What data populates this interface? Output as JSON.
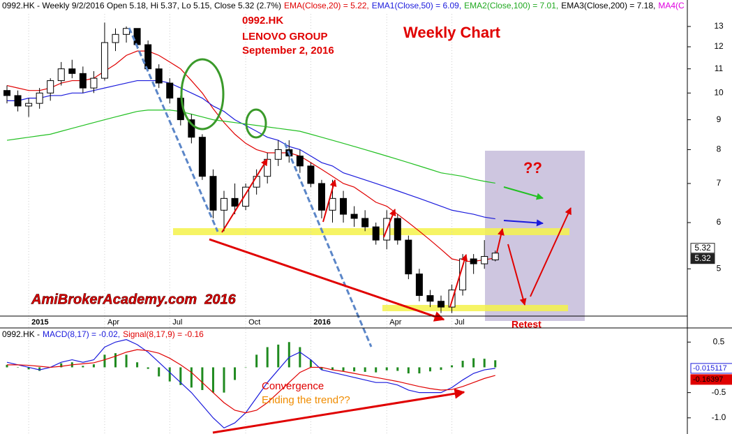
{
  "chart_data": [
    {
      "type": "candlestick",
      "header": [
        {
          "text": "0992.HK - Weekly 9/2/2016 Open 5.18, Hi 5.37, Lo 5.15, Close 5.32 (2.7%)",
          "color": "#000000"
        },
        {
          "text": "EMA(Close,20) = 5.22,",
          "color": "#e00000"
        },
        {
          "text": "EMA1(Close,50) = 6.09,",
          "color": "#1a1adc"
        },
        {
          "text": "EMA2(Close,100) = 7.01,",
          "color": "#1fa81f"
        },
        {
          "text": "EMA3(Close,200) = 7.18,",
          "color": "#000000"
        },
        {
          "text": "MA4(C",
          "color": "#e000e0"
        }
      ],
      "annotations": [
        "0992.HK",
        "LENOVO GROUP",
        "September 2, 2016",
        "Weekly Chart",
        "??",
        "AmiBrokerAcademy.com  2016",
        "Retest"
      ],
      "last_labels": [
        "5.32",
        "5.32"
      ],
      "categories": [
        null,
        null,
        "2015",
        null,
        null,
        null,
        null,
        null,
        null,
        "Apr",
        null,
        null,
        null,
        null,
        null,
        "Jul",
        null,
        null,
        null,
        null,
        null,
        null,
        "Oct",
        null,
        null,
        null,
        null,
        null,
        "2016",
        null,
        null,
        null,
        null,
        null,
        null,
        "Apr",
        null,
        null,
        null,
        null,
        null,
        "Jul",
        null,
        null,
        null,
        null
      ],
      "open": [
        10.1,
        9.9,
        9.5,
        9.6,
        10.0,
        10.5,
        11.0,
        10.8,
        10.2,
        10.6,
        12.2,
        12.6,
        12.9,
        12.1,
        11.0,
        10.4,
        9.8,
        9.0,
        8.4,
        7.2,
        6.3,
        6.6,
        6.4,
        6.9,
        7.2,
        7.7,
        8.0,
        7.8,
        7.5,
        7.0,
        6.3,
        6.6,
        6.2,
        6.1,
        5.9,
        5.6,
        6.1,
        5.6,
        4.9,
        4.5,
        4.4,
        4.3,
        4.6,
        5.2,
        5.1,
        5.18
      ],
      "high": [
        10.3,
        10.1,
        9.8,
        10.2,
        10.6,
        11.3,
        11.4,
        11.1,
        10.9,
        13.2,
        12.9,
        13.0,
        12.9,
        12.3,
        11.2,
        10.6,
        9.9,
        9.2,
        8.5,
        7.4,
        6.8,
        7.0,
        7.0,
        7.4,
        7.9,
        8.3,
        8.3,
        8.0,
        7.6,
        7.1,
        7.1,
        6.8,
        6.4,
        6.3,
        6.0,
        6.3,
        6.2,
        5.7,
        5.0,
        4.6,
        4.5,
        4.7,
        5.3,
        5.3,
        5.6,
        5.37
      ],
      "low": [
        9.6,
        9.3,
        9.1,
        9.4,
        9.7,
        10.3,
        10.6,
        10.0,
        10.0,
        10.5,
        11.8,
        12.2,
        11.9,
        10.9,
        10.2,
        9.6,
        8.8,
        8.2,
        7.1,
        6.1,
        5.8,
        6.2,
        6.3,
        6.7,
        7.0,
        7.5,
        7.6,
        7.3,
        6.9,
        6.1,
        6.0,
        6.0,
        5.9,
        5.8,
        5.5,
        5.4,
        5.5,
        4.8,
        4.4,
        4.3,
        4.2,
        4.2,
        4.5,
        4.9,
        5.0,
        5.15
      ],
      "close": [
        9.9,
        9.5,
        9.6,
        10.0,
        10.5,
        11.0,
        10.8,
        10.2,
        10.6,
        12.2,
        12.6,
        12.9,
        12.1,
        11.0,
        10.4,
        9.8,
        9.0,
        8.4,
        7.2,
        6.3,
        6.6,
        6.4,
        6.9,
        7.2,
        7.7,
        8.0,
        7.8,
        7.5,
        7.0,
        6.3,
        6.6,
        6.2,
        6.1,
        5.9,
        5.6,
        6.1,
        5.6,
        4.9,
        4.5,
        4.4,
        4.3,
        4.6,
        5.2,
        5.1,
        5.25,
        5.32
      ],
      "lines": [
        {
          "color": "#e00000",
          "values": [
            10.3,
            10.2,
            10.1,
            10.1,
            10.2,
            10.4,
            10.5,
            10.5,
            10.6,
            10.9,
            11.2,
            11.6,
            11.8,
            11.8,
            11.6,
            11.3,
            11.0,
            10.5,
            10.0,
            9.4,
            8.9,
            8.5,
            8.2,
            8.0,
            7.9,
            7.9,
            7.9,
            7.8,
            7.6,
            7.4,
            7.2,
            7.0,
            6.9,
            6.7,
            6.5,
            6.4,
            6.2,
            6.0,
            5.8,
            5.6,
            5.4,
            5.2,
            5.15,
            5.15,
            5.18,
            5.22
          ]
        },
        {
          "color": "#1a1adc",
          "values": [
            9.7,
            9.7,
            9.8,
            9.8,
            9.9,
            9.9,
            10.0,
            10.0,
            10.1,
            10.2,
            10.3,
            10.4,
            10.5,
            10.5,
            10.5,
            10.4,
            10.2,
            10.0,
            9.8,
            9.5,
            9.3,
            9.0,
            8.8,
            8.6,
            8.4,
            8.3,
            8.1,
            8.0,
            7.8,
            7.6,
            7.5,
            7.3,
            7.2,
            7.1,
            7.0,
            6.9,
            6.8,
            6.7,
            6.6,
            6.5,
            6.4,
            6.3,
            6.25,
            6.2,
            6.13,
            6.09
          ]
        },
        {
          "color": "#22c022",
          "values": [
            8.3,
            8.35,
            8.4,
            8.45,
            8.5,
            8.6,
            8.7,
            8.8,
            8.9,
            9.0,
            9.1,
            9.2,
            9.3,
            9.35,
            9.35,
            9.35,
            9.3,
            9.2,
            9.1,
            9.0,
            8.95,
            8.9,
            8.85,
            8.8,
            8.75,
            8.7,
            8.65,
            8.6,
            8.5,
            8.4,
            8.3,
            8.2,
            8.1,
            8.0,
            7.9,
            7.8,
            7.7,
            7.6,
            7.5,
            7.4,
            7.3,
            7.25,
            7.2,
            7.12,
            7.06,
            7.01
          ]
        }
      ],
      "log": true,
      "ylim": [
        4.15,
        14.43
      ],
      "yticks": [
        5,
        6,
        7,
        8,
        9,
        10,
        11,
        12,
        13
      ]
    },
    {
      "type": "macd",
      "header": [
        {
          "text": "0992.HK -",
          "color": "#000000"
        },
        {
          "text": "MACD(8,17) = -0.02,",
          "color": "#1a1adc"
        },
        {
          "text": "Signal(8,17,9) = -0.16",
          "color": "#e00000"
        }
      ],
      "annotations": [
        "Convergence",
        "Ending the trend??"
      ],
      "last_labels": [
        {
          "text": "-0.015117",
          "color": "#1a1adc"
        },
        {
          "text": "-0.16397",
          "color": "#e00000"
        }
      ],
      "series": [
        {
          "kind": "bar",
          "color": "#1f8a1f",
          "values": [
            0.05,
            0.0,
            -0.04,
            -0.07,
            0.0,
            0.08,
            0.1,
            0.03,
            0.06,
            0.25,
            0.28,
            0.25,
            0.1,
            -0.03,
            -0.18,
            -0.28,
            -0.35,
            -0.4,
            -0.45,
            -0.5,
            -0.5,
            -0.25,
            0.0,
            0.25,
            0.4,
            0.45,
            0.5,
            0.4,
            0.15,
            -0.05,
            -0.05,
            -0.07,
            -0.08,
            -0.09,
            -0.1,
            -0.06,
            -0.07,
            -0.12,
            -0.12,
            -0.08,
            -0.05,
            0.04,
            0.13,
            0.18,
            0.17,
            0.14
          ]
        },
        {
          "kind": "line",
          "color": "#1a1adc",
          "values": [
            0.1,
            0.05,
            0.0,
            -0.05,
            0.0,
            0.1,
            0.15,
            0.1,
            0.15,
            0.4,
            0.5,
            0.55,
            0.45,
            0.3,
            0.1,
            -0.1,
            -0.3,
            -0.5,
            -0.75,
            -1.0,
            -1.2,
            -1.1,
            -0.9,
            -0.6,
            -0.3,
            -0.05,
            0.2,
            0.3,
            0.15,
            -0.05,
            -0.1,
            -0.15,
            -0.2,
            -0.25,
            -0.3,
            -0.3,
            -0.35,
            -0.45,
            -0.5,
            -0.5,
            -0.5,
            -0.4,
            -0.25,
            -0.12,
            -0.05,
            -0.02
          ]
        },
        {
          "kind": "line",
          "color": "#e00000",
          "values": [
            0.05,
            0.05,
            0.04,
            0.02,
            0.0,
            0.02,
            0.05,
            0.07,
            0.09,
            0.15,
            0.22,
            0.3,
            0.35,
            0.33,
            0.28,
            0.18,
            0.05,
            -0.1,
            -0.3,
            -0.5,
            -0.7,
            -0.85,
            -0.9,
            -0.85,
            -0.7,
            -0.5,
            -0.3,
            -0.1,
            0.0,
            0.0,
            -0.05,
            -0.08,
            -0.12,
            -0.16,
            -0.2,
            -0.24,
            -0.28,
            -0.33,
            -0.38,
            -0.42,
            -0.45,
            -0.44,
            -0.38,
            -0.3,
            -0.22,
            -0.16
          ]
        }
      ],
      "ylim": [
        -1.32,
        0.78
      ],
      "yticks": [
        0.5,
        -0.5,
        {
          "value": -1,
          "label": "-1.0"
        }
      ]
    }
  ]
}
